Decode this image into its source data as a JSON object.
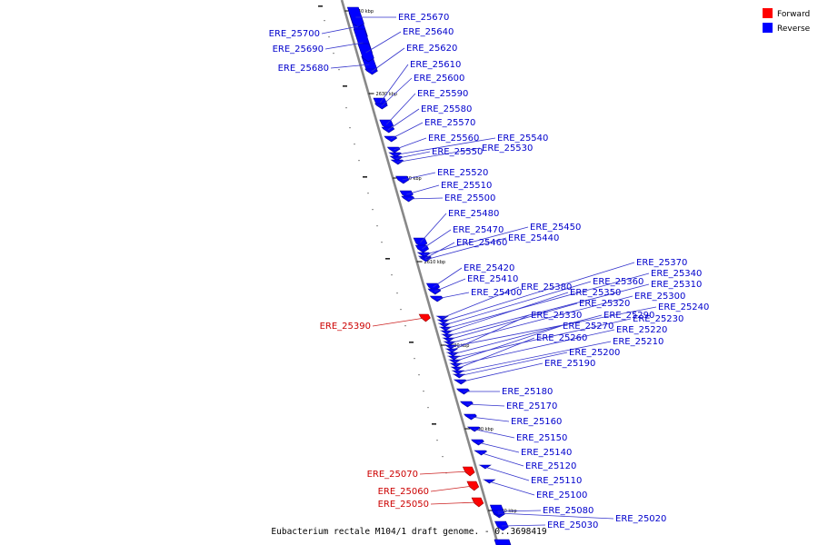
{
  "caption": "Eubacterium rectale M104/1 draft genome. - 0..3698419",
  "legend": [
    {
      "label": "Forward",
      "color": "#ff0000"
    },
    {
      "label": "Reverse",
      "color": "#0000ff"
    }
  ],
  "colors": {
    "forward": "#ff0000",
    "reverse": "#0000ff",
    "forward_edge": "#990000",
    "reverse_edge": "#000099",
    "axis": "#888888"
  },
  "ticks": [
    "2640 kbp",
    "2630 kbp",
    "2620 kbp",
    "2610 kbp",
    "2600 kbp",
    "2590 kbp",
    "2580 kbp"
  ],
  "genes": [
    {
      "name": "ERE_25700",
      "strand": "reverse"
    },
    {
      "name": "ERE_25690",
      "strand": "reverse"
    },
    {
      "name": "ERE_25680",
      "strand": "reverse"
    },
    {
      "name": "ERE_25670",
      "strand": "reverse"
    },
    {
      "name": "ERE_25640",
      "strand": "reverse"
    },
    {
      "name": "ERE_25620",
      "strand": "reverse"
    },
    {
      "name": "ERE_25610",
      "strand": "reverse"
    },
    {
      "name": "ERE_25600",
      "strand": "reverse"
    },
    {
      "name": "ERE_25590",
      "strand": "reverse"
    },
    {
      "name": "ERE_25580",
      "strand": "reverse"
    },
    {
      "name": "ERE_25570",
      "strand": "reverse"
    },
    {
      "name": "ERE_25560",
      "strand": "reverse"
    },
    {
      "name": "ERE_25540",
      "strand": "reverse"
    },
    {
      "name": "ERE_25550",
      "strand": "reverse"
    },
    {
      "name": "ERE_25530",
      "strand": "reverse"
    },
    {
      "name": "ERE_25520",
      "strand": "reverse"
    },
    {
      "name": "ERE_25510",
      "strand": "reverse"
    },
    {
      "name": "ERE_25500",
      "strand": "reverse"
    },
    {
      "name": "ERE_25480",
      "strand": "reverse"
    },
    {
      "name": "ERE_25470",
      "strand": "reverse"
    },
    {
      "name": "ERE_25450",
      "strand": "reverse"
    },
    {
      "name": "ERE_25460",
      "strand": "reverse"
    },
    {
      "name": "ERE_25440",
      "strand": "reverse"
    },
    {
      "name": "ERE_25420",
      "strand": "reverse"
    },
    {
      "name": "ERE_25410",
      "strand": "reverse"
    },
    {
      "name": "ERE_25400",
      "strand": "reverse"
    },
    {
      "name": "ERE_25380",
      "strand": "reverse"
    },
    {
      "name": "ERE_25370",
      "strand": "reverse"
    },
    {
      "name": "ERE_25360",
      "strand": "reverse"
    },
    {
      "name": "ERE_25340",
      "strand": "reverse"
    },
    {
      "name": "ERE_25350",
      "strand": "reverse"
    },
    {
      "name": "ERE_25310",
      "strand": "reverse"
    },
    {
      "name": "ERE_25320",
      "strand": "reverse"
    },
    {
      "name": "ERE_25300",
      "strand": "reverse"
    },
    {
      "name": "ERE_25390",
      "strand": "forward"
    },
    {
      "name": "ERE_25240",
      "strand": "reverse"
    },
    {
      "name": "ERE_25330",
      "strand": "reverse"
    },
    {
      "name": "ERE_25290",
      "strand": "reverse"
    },
    {
      "name": "ERE_25230",
      "strand": "reverse"
    },
    {
      "name": "ERE_25270",
      "strand": "reverse"
    },
    {
      "name": "ERE_25220",
      "strand": "reverse"
    },
    {
      "name": "ERE_25260",
      "strand": "reverse"
    },
    {
      "name": "ERE_25210",
      "strand": "reverse"
    },
    {
      "name": "ERE_25200",
      "strand": "reverse"
    },
    {
      "name": "ERE_25190",
      "strand": "reverse"
    },
    {
      "name": "ERE_25180",
      "strand": "reverse"
    },
    {
      "name": "ERE_25170",
      "strand": "reverse"
    },
    {
      "name": "ERE_25160",
      "strand": "reverse"
    },
    {
      "name": "ERE_25150",
      "strand": "reverse"
    },
    {
      "name": "ERE_25140",
      "strand": "reverse"
    },
    {
      "name": "ERE_25070",
      "strand": "forward"
    },
    {
      "name": "ERE_25120",
      "strand": "reverse"
    },
    {
      "name": "ERE_25110",
      "strand": "reverse"
    },
    {
      "name": "ERE_25060",
      "strand": "forward"
    },
    {
      "name": "ERE_25100",
      "strand": "reverse"
    },
    {
      "name": "ERE_25050",
      "strand": "forward"
    },
    {
      "name": "ERE_25080",
      "strand": "reverse"
    },
    {
      "name": "ERE_25020",
      "strand": "reverse"
    },
    {
      "name": "ERE_25030",
      "strand": "reverse"
    }
  ]
}
